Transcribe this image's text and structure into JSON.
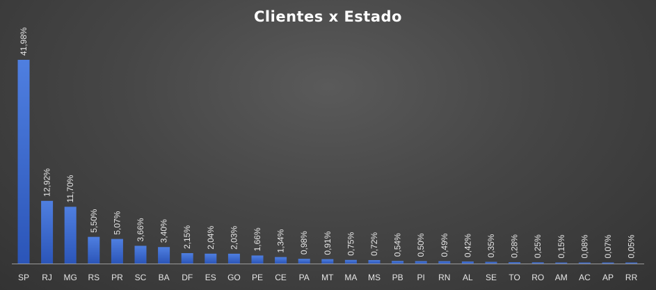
{
  "chart_data": {
    "type": "bar",
    "title": "Clientes x Estado",
    "xlabel": "",
    "ylabel": "",
    "ylim": [
      0,
      41.98
    ],
    "grid": false,
    "legend": "none",
    "colors": {
      "bar_top": "#4f7fe0",
      "bar_bottom": "#2b55b8",
      "axis": "#9a9a9a"
    },
    "categories": [
      "SP",
      "RJ",
      "MG",
      "RS",
      "PR",
      "SC",
      "BA",
      "DF",
      "ES",
      "GO",
      "PE",
      "CE",
      "PA",
      "MT",
      "MA",
      "MS",
      "PB",
      "PI",
      "RN",
      "AL",
      "SE",
      "TO",
      "RO",
      "AM",
      "AC",
      "AP",
      "RR"
    ],
    "values": [
      41.98,
      12.92,
      11.7,
      5.5,
      5.07,
      3.66,
      3.4,
      2.15,
      2.04,
      2.03,
      1.66,
      1.34,
      0.98,
      0.91,
      0.75,
      0.72,
      0.54,
      0.5,
      0.49,
      0.42,
      0.35,
      0.28,
      0.25,
      0.15,
      0.08,
      0.07,
      0.05
    ],
    "data_labels": [
      "41,98%",
      "12,92%",
      "11,70%",
      "5,50%",
      "5,07%",
      "3,66%",
      "3,40%",
      "2,15%",
      "2,04%",
      "2,03%",
      "1,66%",
      "1,34%",
      "0,98%",
      "0,91%",
      "0,75%",
      "0,72%",
      "0,54%",
      "0,50%",
      "0,49%",
      "0,42%",
      "0,35%",
      "0,28%",
      "0,25%",
      "0,15%",
      "0,08%",
      "0,07%",
      "0,05%"
    ]
  }
}
